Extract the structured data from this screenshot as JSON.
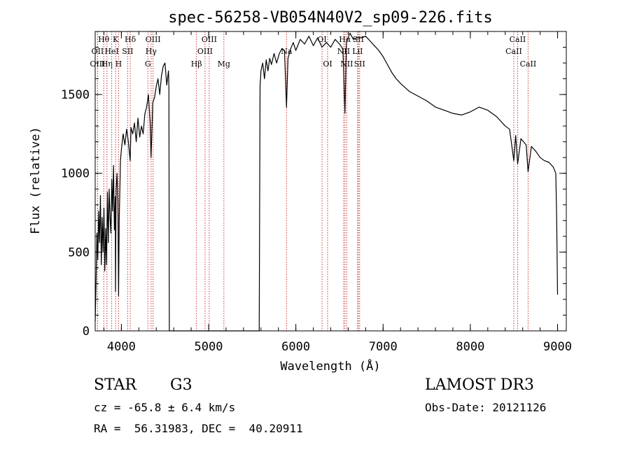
{
  "chart_data": {
    "type": "line",
    "title": "spec-56258-VB054N40V2_sp09-226.fits",
    "xlabel": "Wavelength (Å)",
    "ylabel": "Flux (relative)",
    "xlim": [
      3700,
      9100
    ],
    "ylim": [
      0,
      1900
    ],
    "x_ticks": [
      4000,
      5000,
      6000,
      7000,
      8000,
      9000
    ],
    "y_ticks": [
      0,
      500,
      1000,
      1500
    ],
    "gap": [
      4550,
      5580
    ],
    "series": [
      {
        "name": "flux",
        "x": [
          3700,
          3710,
          3720,
          3730,
          3740,
          3750,
          3760,
          3770,
          3780,
          3790,
          3800,
          3810,
          3820,
          3830,
          3840,
          3850,
          3860,
          3870,
          3880,
          3890,
          3900,
          3910,
          3920,
          3930,
          3933,
          3940,
          3950,
          3960,
          3968,
          3975,
          3990,
          4000,
          4020,
          4040,
          4060,
          4080,
          4101,
          4110,
          4130,
          4150,
          4170,
          4190,
          4210,
          4230,
          4250,
          4270,
          4290,
          4310,
          4330,
          4340,
          4360,
          4380,
          4400,
          4420,
          4440,
          4460,
          4480,
          4500,
          4520,
          4540,
          4545,
          4550,
          5580,
          5590,
          5600,
          5620,
          5640,
          5660,
          5680,
          5700,
          5720,
          5750,
          5780,
          5810,
          5840,
          5870,
          5893,
          5910,
          5940,
          5970,
          6000,
          6050,
          6100,
          6150,
          6200,
          6250,
          6300,
          6350,
          6400,
          6450,
          6500,
          6540,
          6563,
          6580,
          6620,
          6660,
          6700,
          6750,
          6800,
          6850,
          6900,
          6950,
          7000,
          7050,
          7100,
          7150,
          7200,
          7300,
          7400,
          7500,
          7600,
          7700,
          7800,
          7900,
          8000,
          8100,
          8200,
          8300,
          8400,
          8450,
          8498,
          8520,
          8542,
          8580,
          8640,
          8662,
          8700,
          8750,
          8800,
          8850,
          8900,
          8950,
          8980,
          8990,
          9000
        ],
        "y": [
          60,
          300,
          620,
          450,
          760,
          560,
          860,
          420,
          720,
          500,
          780,
          380,
          650,
          420,
          880,
          560,
          900,
          720,
          620,
          960,
          760,
          1050,
          640,
          850,
          250,
          900,
          1000,
          820,
          220,
          700,
          1080,
          1150,
          1250,
          1180,
          1280,
          1200,
          1080,
          1290,
          1250,
          1320,
          1200,
          1350,
          1230,
          1300,
          1250,
          1380,
          1420,
          1500,
          1320,
          1100,
          1450,
          1480,
          1550,
          1600,
          1500,
          1620,
          1680,
          1700,
          1560,
          1650,
          1550,
          0,
          0,
          1550,
          1650,
          1700,
          1600,
          1720,
          1650,
          1730,
          1690,
          1760,
          1700,
          1760,
          1790,
          1780,
          1420,
          1730,
          1790,
          1830,
          1780,
          1850,
          1820,
          1870,
          1810,
          1860,
          1800,
          1830,
          1800,
          1850,
          1820,
          1790,
          1380,
          1830,
          1890,
          1850,
          1860,
          1860,
          1870,
          1840,
          1810,
          1780,
          1740,
          1690,
          1640,
          1600,
          1570,
          1520,
          1490,
          1460,
          1420,
          1400,
          1380,
          1370,
          1390,
          1420,
          1400,
          1360,
          1300,
          1280,
          1080,
          1240,
          1060,
          1220,
          1180,
          1010,
          1170,
          1140,
          1100,
          1080,
          1070,
          1040,
          1000,
          700,
          230
        ]
      }
    ],
    "lines": [
      {
        "name": "Hθ",
        "wave": 3798,
        "row": 0
      },
      {
        "name": "OII",
        "wave": 3727,
        "row": 1
      },
      {
        "name": "OIII",
        "wave": 3727,
        "row": 2
      },
      {
        "name": "K",
        "wave": 3934,
        "row": 0
      },
      {
        "name": "Hη",
        "wave": 3835,
        "row": 2
      },
      {
        "name": "HeI",
        "wave": 3889,
        "row": 1
      },
      {
        "name": "H",
        "wave": 3968,
        "row": 2
      },
      {
        "name": "SII",
        "wave": 4072,
        "row": 1
      },
      {
        "name": "Hδ",
        "wave": 4102,
        "row": 0
      },
      {
        "name": "OIII",
        "wave": 4363,
        "row": 0
      },
      {
        "name": "Hγ",
        "wave": 4341,
        "row": 1
      },
      {
        "name": "G",
        "wave": 4304,
        "row": 2
      },
      {
        "name": "OIII",
        "wave": 5007,
        "row": 0
      },
      {
        "name": "OIII",
        "wave": 4959,
        "row": 1
      },
      {
        "name": "Hβ",
        "wave": 4861,
        "row": 2
      },
      {
        "name": "Mg",
        "wave": 5175,
        "row": 2
      },
      {
        "name": "Na",
        "wave": 5893,
        "row": 1
      },
      {
        "name": "OI",
        "wave": 6300,
        "row": 0
      },
      {
        "name": "OI",
        "wave": 6364,
        "row": 2
      },
      {
        "name": "Hα",
        "wave": 6563,
        "row": 0
      },
      {
        "name": "NII",
        "wave": 6548,
        "row": 1
      },
      {
        "name": "NII",
        "wave": 6583,
        "row": 2
      },
      {
        "name": "SII",
        "wave": 6716,
        "row": 0
      },
      {
        "name": "LiI",
        "wave": 6708,
        "row": 1
      },
      {
        "name": "SII",
        "wave": 6731,
        "row": 2
      },
      {
        "name": "CaII",
        "wave": 8542,
        "row": 0
      },
      {
        "name": "CaII",
        "wave": 8498,
        "row": 1
      },
      {
        "name": "CaII",
        "wave": 8662,
        "row": 2
      }
    ],
    "line_color": "#cc3333",
    "flux_color": "#000000"
  },
  "info": {
    "object_class": "STAR",
    "subclass": "G3",
    "survey": "LAMOST DR3",
    "cz": "cz = -65.8 ± 6.4 km/s",
    "obs_date": "Obs-Date: 20121126",
    "coords": "RA =  56.31983, DEC =  40.20911"
  }
}
